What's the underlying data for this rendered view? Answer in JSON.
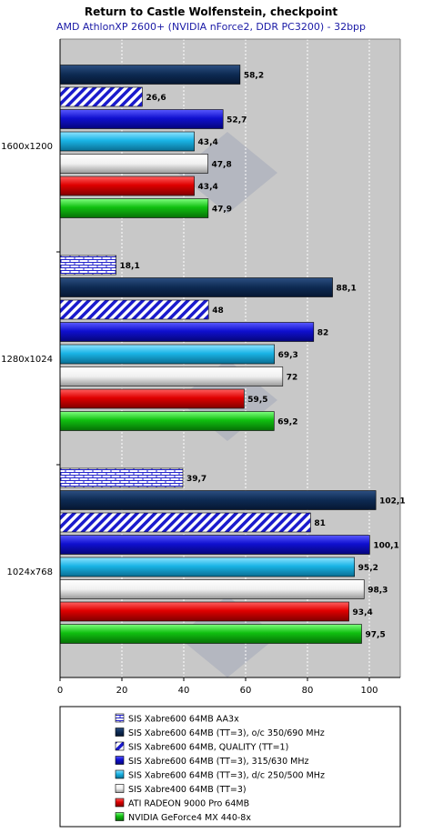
{
  "chart_data": {
    "type": "bar",
    "orientation": "horizontal",
    "title": "Return to Castle Wolfenstein, checkpoint",
    "subtitle": "AMD AthlonXP 2600+ (NVIDIA nForce2, DDR PC3200) - 32bpp",
    "xlabel": "",
    "ylabel": "",
    "xlim": [
      0,
      110
    ],
    "xticks": [
      "0",
      "20",
      "40",
      "60",
      "80",
      "100"
    ],
    "grid": true,
    "legend_position": "bottom",
    "categories": [
      "1600x1200",
      "1280x1024",
      "1024x768"
    ],
    "series": [
      {
        "name": "SIS Xabre600 64MB AA3x",
        "values": [
          null,
          18.1,
          39.7
        ],
        "labels": [
          "",
          "18,1",
          "39,7"
        ],
        "color": "#ffffff",
        "pattern": "brick"
      },
      {
        "name": "SIS Xabre600 64MB (TT=3), o/c 350/690 MHz",
        "values": [
          58.2,
          88.1,
          102.1
        ],
        "labels": [
          "58,2",
          "88,1",
          "102,1"
        ],
        "color": "#0d2a52",
        "pattern": "solid"
      },
      {
        "name": "SIS Xabre600 64MB, QUALITY (TT=1)",
        "values": [
          26.6,
          48,
          81
        ],
        "labels": [
          "26,6",
          "48",
          "81"
        ],
        "color": "#1a1acc",
        "pattern": "hatch"
      },
      {
        "name": "SIS Xabre600 64MB (TT=3), 315/630 MHz",
        "values": [
          52.7,
          82,
          100.1
        ],
        "labels": [
          "52,7",
          "82",
          "100,1"
        ],
        "color": "#1010d0",
        "pattern": "solid"
      },
      {
        "name": "SIS Xabre600 64MB (TT=3), d/c 250/500 MHz",
        "values": [
          43.4,
          69.3,
          95.2
        ],
        "labels": [
          "43,4",
          "69,3",
          "95,2"
        ],
        "color": "#1ab4e6",
        "pattern": "solid"
      },
      {
        "name": "SIS Xabre400 64MB (TT=3)",
        "values": [
          47.8,
          72,
          98.3
        ],
        "labels": [
          "47,8",
          "72",
          "98,3"
        ],
        "color": "#e8e8e8",
        "pattern": "solid"
      },
      {
        "name": "ATI RADEON 9000 Pro 64MB",
        "values": [
          43.4,
          59.5,
          93.4
        ],
        "labels": [
          "43,4",
          "59,5",
          "93,4"
        ],
        "color": "#e00000",
        "pattern": "solid"
      },
      {
        "name": "NVIDIA GeForce4 MX 440-8x",
        "values": [
          47.9,
          69.2,
          97.5
        ],
        "labels": [
          "47,9",
          "69,2",
          "97,5"
        ],
        "color": "#10c010",
        "pattern": "solid"
      }
    ],
    "colors": {
      "plot_bg": "#c8c8c8",
      "frame": "#808080",
      "page_bg": "#ffffff"
    }
  }
}
